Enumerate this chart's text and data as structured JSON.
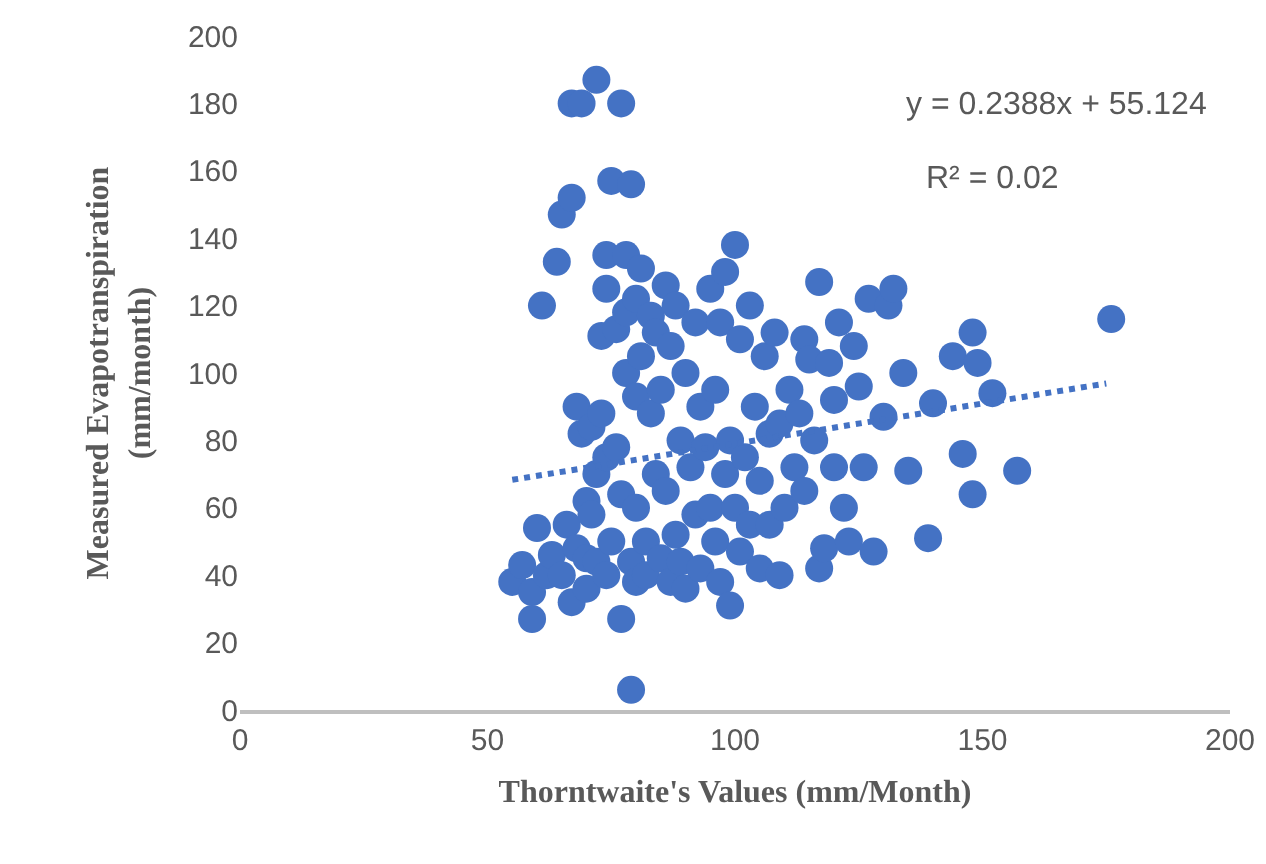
{
  "chart_data": {
    "type": "scatter",
    "xlabel": "Thorntwaite's Values (mm/Month)",
    "ylabel": "Measured Evapotranspiration\n(mm/month)",
    "xlim": [
      0,
      200
    ],
    "xticks": [
      0,
      50,
      100,
      150,
      200
    ],
    "ylim": [
      0,
      200
    ],
    "yticks": [
      0,
      20,
      40,
      60,
      80,
      100,
      120,
      140,
      160,
      180,
      200
    ],
    "grid": false,
    "marker": "circle",
    "annotations": [
      "y = 0.2388x + 55.124",
      "R² = 0.02"
    ],
    "series": [
      {
        "type": "scatter",
        "color": "#4472c4",
        "x": [
          55,
          57,
          59,
          59,
          60,
          61,
          62,
          63,
          64,
          65,
          65,
          66,
          67,
          67,
          67,
          68,
          68,
          69,
          69,
          70,
          70,
          70,
          71,
          71,
          72,
          72,
          72,
          73,
          73,
          74,
          74,
          74,
          74,
          75,
          75,
          76,
          76,
          77,
          77,
          77,
          78,
          78,
          78,
          79,
          79,
          79,
          80,
          80,
          80,
          80,
          81,
          81,
          82,
          82,
          83,
          83,
          84,
          84,
          85,
          85,
          86,
          86,
          87,
          87,
          88,
          88,
          89,
          89,
          90,
          90,
          91,
          92,
          92,
          93,
          93,
          94,
          95,
          95,
          96,
          96,
          97,
          97,
          98,
          98,
          99,
          99,
          100,
          100,
          101,
          101,
          102,
          103,
          103,
          104,
          105,
          105,
          106,
          107,
          107,
          108,
          109,
          109,
          110,
          111,
          112,
          113,
          114,
          114,
          115,
          116,
          117,
          117,
          118,
          119,
          120,
          120,
          121,
          122,
          123,
          124,
          125,
          126,
          127,
          128,
          130,
          131,
          132,
          134,
          135,
          139,
          140,
          144,
          146,
          148,
          148,
          149,
          152,
          157,
          176
        ],
        "values": [
          38,
          43,
          27,
          35,
          54,
          120,
          40,
          46,
          133,
          147,
          40,
          55,
          180,
          152,
          32,
          48,
          90,
          82,
          180,
          62,
          36,
          45,
          58,
          84,
          187,
          70,
          44,
          111,
          88,
          135,
          125,
          75,
          40,
          157,
          50,
          113,
          78,
          180,
          27,
          64,
          100,
          118,
          135,
          156,
          6,
          44,
          93,
          122,
          60,
          38,
          105,
          131,
          50,
          40,
          88,
          117,
          112,
          70,
          45,
          95,
          126,
          65,
          108,
          38,
          120,
          52,
          80,
          44,
          100,
          36,
          72,
          115,
          58,
          90,
          42,
          78,
          125,
          60,
          50,
          95,
          115,
          38,
          130,
          70,
          80,
          31,
          138,
          60,
          110,
          47,
          75,
          120,
          55,
          90,
          42,
          68,
          105,
          82,
          55,
          112,
          85,
          40,
          60,
          95,
          72,
          88,
          110,
          65,
          104,
          80,
          127,
          42,
          48,
          103,
          72,
          92,
          115,
          60,
          50,
          108,
          96,
          72,
          122,
          47,
          87,
          120,
          125,
          100,
          71,
          51,
          91,
          105,
          76,
          64,
          112,
          103,
          94,
          71,
          116
        ]
      },
      {
        "type": "line",
        "color": "#4472c4",
        "line_style": "dotted",
        "marker": "none",
        "x": [
          55,
          175
        ],
        "values": [
          68.3,
          96.9
        ]
      }
    ]
  }
}
